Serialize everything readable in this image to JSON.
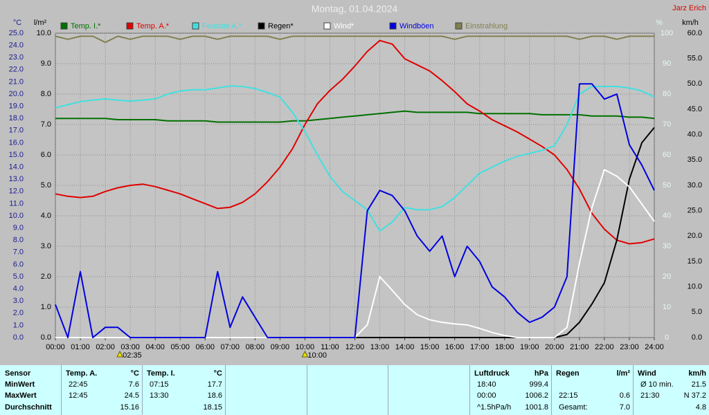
{
  "chart_data": {
    "type": "line",
    "title": "Montag, 01.04.2024",
    "author": "Jarz Erich",
    "x": [
      0,
      0.5,
      1,
      1.5,
      2,
      2.5,
      3,
      3.5,
      4,
      4.5,
      5,
      5.5,
      6,
      6.5,
      7,
      7.5,
      8,
      8.5,
      9,
      9.5,
      10,
      10.5,
      11,
      11.5,
      12,
      12.5,
      13,
      13.5,
      14,
      14.5,
      15,
      15.5,
      16,
      16.5,
      17,
      17.5,
      18,
      18.5,
      19,
      19.5,
      20,
      20.5,
      21,
      21.5,
      22,
      22.5,
      23,
      23.5,
      24
    ],
    "xlim": [
      0,
      24
    ],
    "xticks": [
      {
        "value": 0,
        "label": "00:00"
      },
      {
        "value": 1,
        "label": "01:00"
      },
      {
        "value": 2,
        "label": "02:00"
      },
      {
        "value": 3,
        "label": "03:00"
      },
      {
        "value": 4,
        "label": "04:00"
      },
      {
        "value": 5,
        "label": "05:00"
      },
      {
        "value": 6,
        "label": "06:00"
      },
      {
        "value": 7,
        "label": "07:00"
      },
      {
        "value": 8,
        "label": "08:00"
      },
      {
        "value": 9,
        "label": "09:00"
      },
      {
        "value": 10,
        "label": "10:00"
      },
      {
        "value": 11,
        "label": "11:00"
      },
      {
        "value": 12,
        "label": "12:00"
      },
      {
        "value": 13,
        "label": "13:00"
      },
      {
        "value": 14,
        "label": "14:00"
      },
      {
        "value": 15,
        "label": "15:00"
      },
      {
        "value": 16,
        "label": "16:00"
      },
      {
        "value": 17,
        "label": "17:00"
      },
      {
        "value": 18,
        "label": "18:00"
      },
      {
        "value": 19,
        "label": "19:00"
      },
      {
        "value": 20,
        "label": "20:00"
      },
      {
        "value": 21,
        "label": "21:00"
      },
      {
        "value": 22,
        "label": "22:00"
      },
      {
        "value": 23,
        "label": "23:00"
      },
      {
        "value": 24,
        "label": "24:00"
      }
    ],
    "ylabel": "°C",
    "ylim": [
      0,
      25
    ],
    "yticks": [
      {
        "value": 0,
        "label": "0.0"
      },
      {
        "value": 1,
        "label": "1.0"
      },
      {
        "value": 2,
        "label": "2.0"
      },
      {
        "value": 3,
        "label": "3.0"
      },
      {
        "value": 4,
        "label": "4.0"
      },
      {
        "value": 5,
        "label": "5.0"
      },
      {
        "value": 6,
        "label": "6.0"
      },
      {
        "value": 7,
        "label": "7.0"
      },
      {
        "value": 8,
        "label": "8.0"
      },
      {
        "value": 9,
        "label": "9.0"
      },
      {
        "value": 10,
        "label": "10.0"
      },
      {
        "value": 11,
        "label": "11.0"
      },
      {
        "value": 12,
        "label": "12.0"
      },
      {
        "value": 13,
        "label": "13.0"
      },
      {
        "value": 14,
        "label": "14.0"
      },
      {
        "value": 15,
        "label": "15.0"
      },
      {
        "value": 16,
        "label": "16.0"
      },
      {
        "value": 17,
        "label": "17.0"
      },
      {
        "value": 18,
        "label": "18.0"
      },
      {
        "value": 19,
        "label": "19.0"
      },
      {
        "value": 20,
        "label": "20.0"
      },
      {
        "value": 21,
        "label": "21.0"
      },
      {
        "value": 22,
        "label": "22.0"
      },
      {
        "value": 23,
        "label": "23.0"
      },
      {
        "value": 24,
        "label": "24.0"
      },
      {
        "value": 25,
        "label": "25.0"
      }
    ],
    "y2label": "l/m²",
    "y2lim": [
      0,
      10
    ],
    "y2ticks": [
      {
        "value": 0,
        "label": "0.0"
      },
      {
        "value": 1,
        "label": "1.0"
      },
      {
        "value": 2,
        "label": "2.0"
      },
      {
        "value": 3,
        "label": "3.0"
      },
      {
        "value": 4,
        "label": "4.0"
      },
      {
        "value": 5,
        "label": "5.0"
      },
      {
        "value": 6,
        "label": "6.0"
      },
      {
        "value": 7,
        "label": "7.0"
      },
      {
        "value": 8,
        "label": "8.0"
      },
      {
        "value": 9,
        "label": "9.0"
      },
      {
        "value": 10,
        "label": "10.0"
      }
    ],
    "y3label": "%",
    "y3lim": [
      0,
      100
    ],
    "y3ticks": [
      0,
      10,
      20,
      30,
      40,
      50,
      60,
      70,
      80,
      90,
      100
    ],
    "y4label": "km/h",
    "y4lim": [
      0,
      60
    ],
    "y4ticks": [
      {
        "value": 0,
        "label": "0.0"
      },
      {
        "value": 5,
        "label": "5.0"
      },
      {
        "value": 10,
        "label": "10.0"
      },
      {
        "value": 15,
        "label": "15.0"
      },
      {
        "value": 20,
        "label": "20.0"
      },
      {
        "value": 25,
        "label": "25.0"
      },
      {
        "value": 30,
        "label": "30.0"
      },
      {
        "value": 35,
        "label": "35.0"
      },
      {
        "value": 40,
        "label": "40.0"
      },
      {
        "value": 45,
        "label": "45.0"
      },
      {
        "value": 50,
        "label": "50.0"
      },
      {
        "value": 55,
        "label": "55.0"
      },
      {
        "value": 60,
        "label": "60.0"
      }
    ],
    "grid": true,
    "sun_markers": [
      "02:35",
      "10:00"
    ],
    "series": [
      {
        "name": "Temp. I.*",
        "color": "#007000",
        "axis": "y",
        "values": [
          18.0,
          18.0,
          18.0,
          18.0,
          18.0,
          17.9,
          17.9,
          17.9,
          17.9,
          17.8,
          17.8,
          17.8,
          17.8,
          17.7,
          17.7,
          17.7,
          17.7,
          17.7,
          17.7,
          17.8,
          17.8,
          17.9,
          18.0,
          18.1,
          18.2,
          18.3,
          18.4,
          18.5,
          18.6,
          18.5,
          18.5,
          18.5,
          18.5,
          18.5,
          18.4,
          18.4,
          18.4,
          18.4,
          18.4,
          18.3,
          18.3,
          18.3,
          18.3,
          18.2,
          18.2,
          18.2,
          18.1,
          18.1,
          18.0
        ]
      },
      {
        "name": "Temp. A.*",
        "color": "#e00000",
        "axis": "y",
        "values": [
          11.8,
          11.6,
          11.5,
          11.6,
          12.0,
          12.3,
          12.5,
          12.6,
          12.4,
          12.1,
          11.8,
          11.4,
          11.0,
          10.6,
          10.7,
          11.1,
          11.8,
          12.8,
          14.0,
          15.5,
          17.5,
          19.2,
          20.3,
          21.2,
          22.3,
          23.5,
          24.4,
          24.1,
          22.9,
          22.4,
          21.9,
          21.1,
          20.2,
          19.2,
          18.6,
          17.9,
          17.4,
          16.9,
          16.3,
          15.7,
          15.0,
          13.8,
          12.2,
          10.2,
          8.9,
          8.0,
          7.7,
          7.8,
          8.1
        ]
      },
      {
        "name": "Feuchte A.*",
        "color": "#40e0e0",
        "axis": "y3",
        "values": [
          75.5,
          76.5,
          77.5,
          78,
          78.4,
          78,
          77.7,
          78,
          78.4,
          80,
          81,
          81.4,
          81.4,
          82,
          82.7,
          82.5,
          81.8,
          80.5,
          79,
          74,
          67.7,
          60,
          53,
          48,
          45,
          42,
          35,
          38,
          42.7,
          42,
          42,
          43,
          46,
          50,
          54,
          56,
          58,
          59.5,
          60.5,
          61.5,
          63,
          70,
          80,
          82.5,
          82.5,
          82.5,
          82,
          81,
          79
        ]
      },
      {
        "name": "Regen*",
        "color": "#000000",
        "axis": "y2",
        "values": [
          0,
          0,
          0,
          0,
          0,
          0,
          0,
          0,
          0,
          0,
          0,
          0,
          0,
          0,
          0,
          0,
          0,
          0,
          0,
          0,
          0,
          0,
          0,
          0,
          0,
          0,
          0,
          0,
          0,
          0,
          0,
          0,
          0,
          0,
          0,
          0,
          0,
          0,
          0,
          0,
          0,
          0.1,
          0.5,
          1.1,
          1.8,
          3.2,
          5.2,
          6.4,
          6.9
        ]
      },
      {
        "name": "Wind*",
        "color": "#ffffff",
        "axis": "y4",
        "values": [
          0,
          0,
          0,
          0,
          0,
          0,
          0,
          0,
          0,
          0,
          0,
          0,
          0,
          0,
          0,
          0,
          0,
          0,
          0,
          0,
          0,
          0,
          0,
          0,
          0,
          2.5,
          12,
          9.3,
          6.5,
          4.5,
          3.5,
          3,
          2.7,
          2.5,
          1.8,
          1,
          0.4,
          0,
          0,
          0,
          0,
          2,
          14.7,
          25.6,
          33.1,
          31.8,
          29.7,
          26.3,
          22.9
        ]
      },
      {
        "name": "Windböen",
        "color": "#0000e0",
        "axis": "y4",
        "values": [
          6.5,
          0,
          13,
          0,
          2,
          2,
          0,
          0,
          0,
          0,
          0,
          0,
          0,
          13,
          2,
          8,
          4,
          0,
          0,
          0,
          0,
          0,
          0,
          0,
          0,
          25,
          29,
          28,
          25,
          20,
          17,
          20,
          12,
          18,
          15,
          10,
          8,
          5,
          3,
          4,
          6,
          12,
          50,
          50,
          47,
          48,
          38,
          34,
          29
        ]
      },
      {
        "name": "Einstrahlung",
        "color": "#808050",
        "axis": "y3",
        "values": [
          99,
          98,
          99,
          99,
          97,
          99,
          98,
          99,
          99,
          99,
          98,
          99,
          99,
          98,
          99,
          99,
          99,
          99,
          98,
          99,
          99,
          99,
          99,
          99,
          99,
          99,
          99,
          99,
          99,
          99,
          99,
          99,
          98,
          99,
          99,
          99,
          99,
          99,
          99,
          99,
          99,
          99,
          98,
          99,
          99,
          98,
          99,
          99,
          99
        ]
      }
    ]
  },
  "table": {
    "sensor": "Sensor",
    "row_labels": [
      "MinWert",
      "MaxWert",
      "Durchschnitt"
    ],
    "groups": [
      {
        "title": "Temp. A.",
        "unit": "°C",
        "rows": [
          {
            "time": "22:45",
            "value": "7.6"
          },
          {
            "time": "12:45",
            "value": "24.5"
          },
          {
            "value": "15.16"
          }
        ]
      },
      {
        "title": "Temp. I.",
        "unit": "°C",
        "rows": [
          {
            "time": "07:15",
            "value": "17.7"
          },
          {
            "time": "13:30",
            "value": "18.6"
          },
          {
            "value": "18.15"
          }
        ]
      },
      {
        "title": "Luftdruck",
        "unit": "hPa",
        "rows": [
          {
            "time": "18:40",
            "value": "999.4"
          },
          {
            "time": "00:00",
            "value": "1006.2"
          },
          {
            "time": "^1.5hPa/h",
            "value": "1001.8"
          }
        ]
      },
      {
        "title": "Regen",
        "unit": "l/m²",
        "rows": [
          {},
          {
            "time": "22:15",
            "value": "0.6"
          },
          {
            "time": "Gesamt:",
            "value": "7.0"
          }
        ]
      },
      {
        "title": "Wind",
        "unit": "km/h",
        "rows": [
          {
            "time": "Ø 10 min.",
            "value": "21.5"
          },
          {
            "time": "21:30",
            "value": "N 37.2"
          },
          {
            "value": "4.8"
          }
        ]
      }
    ]
  }
}
